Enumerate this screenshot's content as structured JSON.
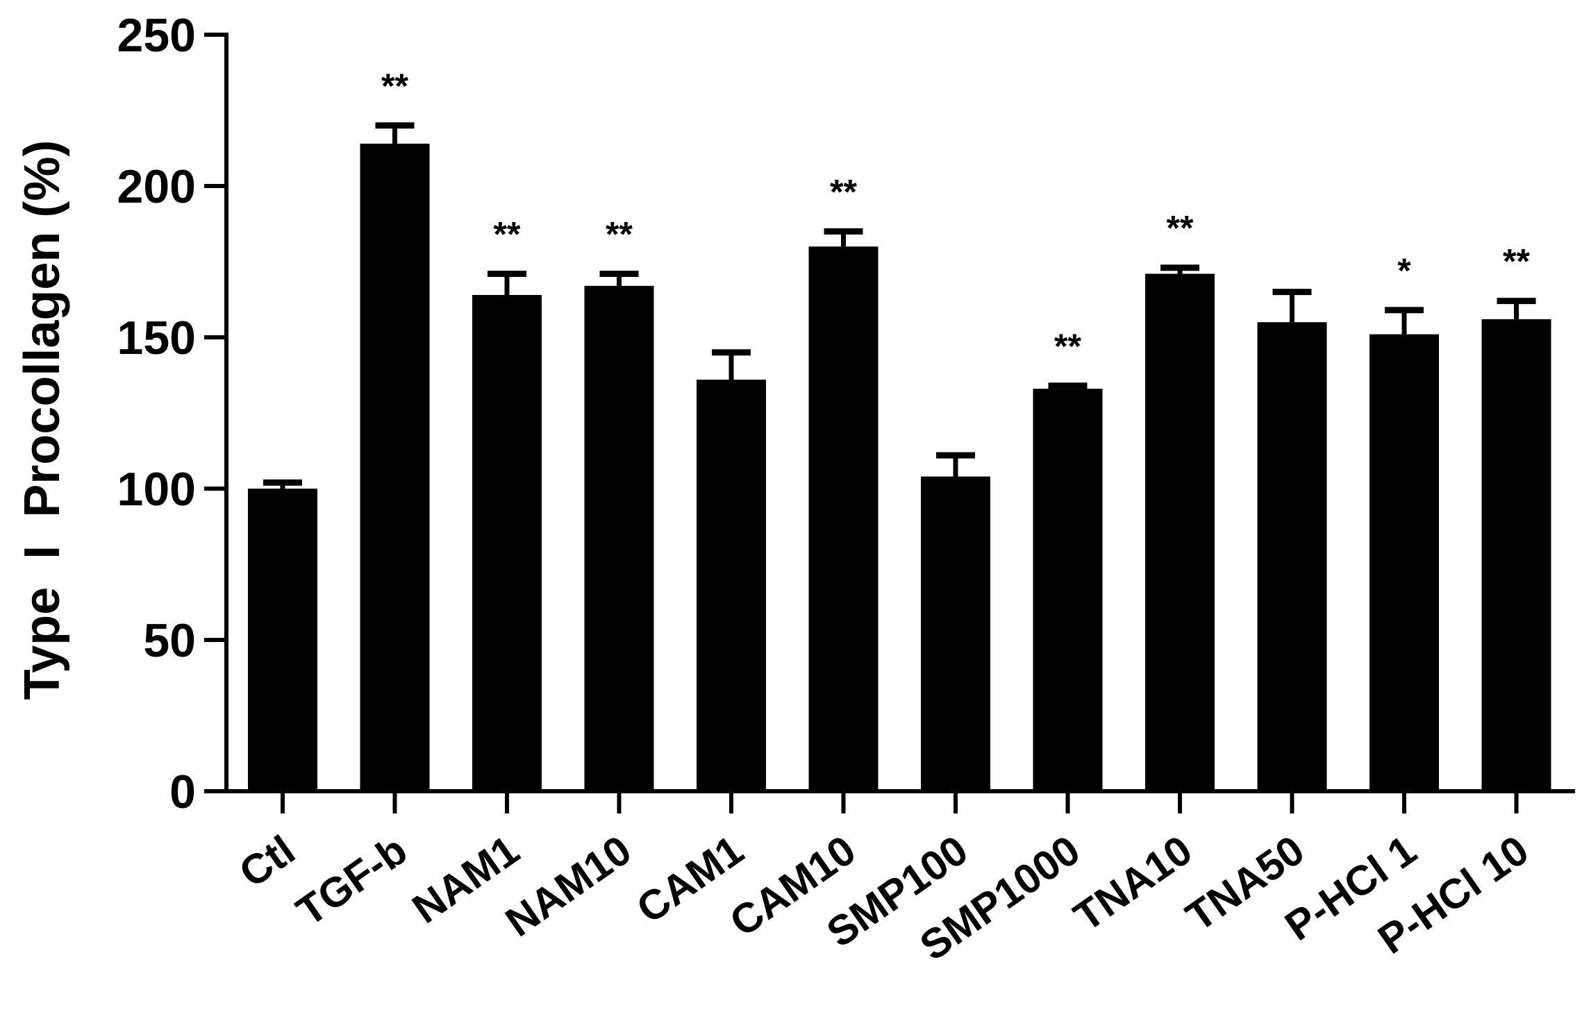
{
  "chart_data": {
    "type": "bar",
    "title": "",
    "xlabel": "",
    "ylabel": "Type  I  Procollagen (%)",
    "ylim": [
      0,
      250
    ],
    "yticks": [
      0,
      50,
      100,
      150,
      200,
      250
    ],
    "grid": false,
    "bar_color": "#000000",
    "categories": [
      "Ctl",
      "TGF-b",
      "NAM1",
      "NAM10",
      "CAM1",
      "CAM10",
      "SMP100",
      "SMP1000",
      "TNA10",
      "TNA50",
      "P-HCl 1",
      "P-HCl 10"
    ],
    "values": [
      100,
      214,
      164,
      167,
      136,
      180,
      104,
      133,
      171,
      155,
      151,
      156
    ],
    "errors": [
      2,
      6,
      7,
      4,
      9,
      5,
      7,
      1,
      2,
      10,
      8,
      6
    ],
    "significance": [
      "",
      "**",
      "**",
      "**",
      "",
      "**",
      "",
      "**",
      "**",
      "",
      "*",
      "**"
    ]
  }
}
